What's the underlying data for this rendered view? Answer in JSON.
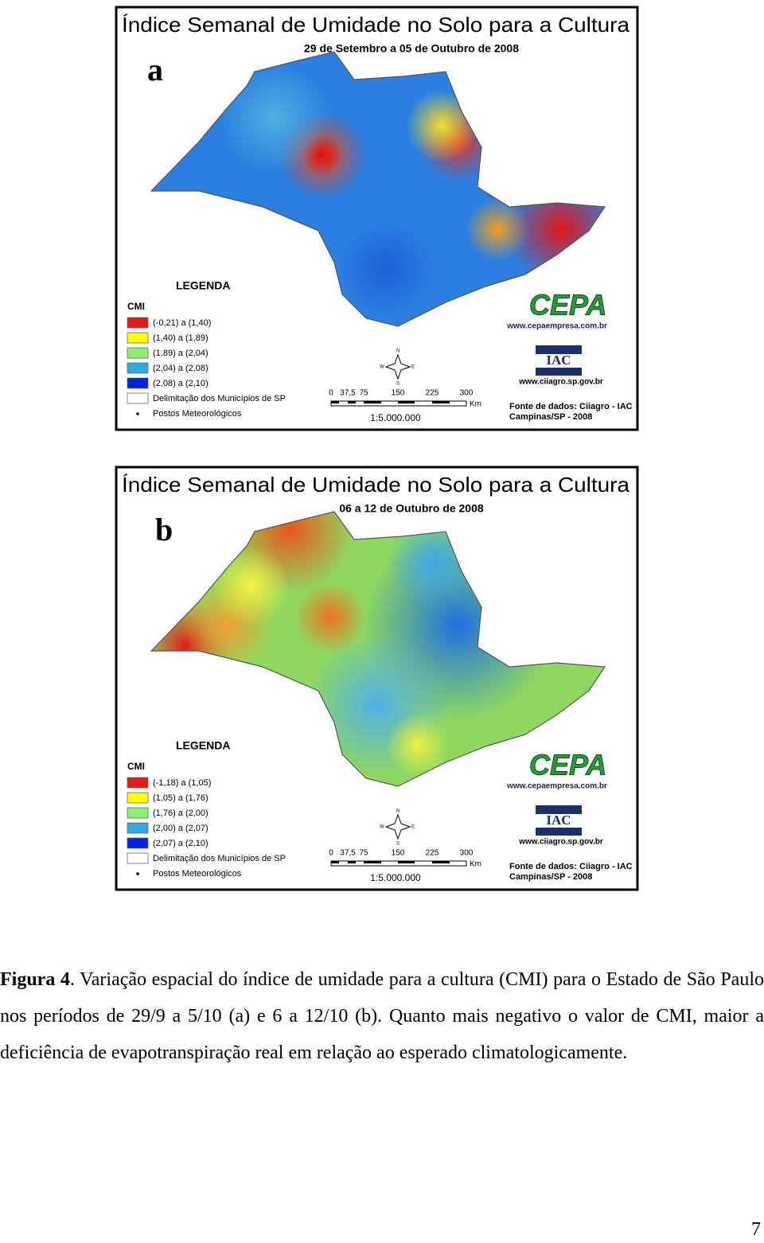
{
  "maps": [
    {
      "title": "Índice Semanal de Umidade no Solo para a Cultura",
      "subtitle": "29 de Setembro a 05 de Outubro de 2008",
      "panel": "a",
      "legend": {
        "title": "LEGENDA",
        "variable": "CMI",
        "entries": [
          "(-0,21) a (1,40)",
          "(1,40) a (1,89)",
          "(1,89) a (2,04)",
          "(2,04) a (2,08)",
          "(2,08) a (2,10)",
          "Delimitação dos Municípios de SP",
          "Postos Meteorológicos"
        ]
      },
      "compass": [
        "N",
        "S",
        "W",
        "E"
      ],
      "scale": {
        "ticks": [
          "0",
          "37,5",
          "75",
          "150",
          "225",
          "300"
        ],
        "unit": "Km",
        "ratio": "1:5.000.000"
      },
      "logos": {
        "cepa": "CEPA",
        "cepa_url": "www.cepaempresa.com.br",
        "iac": "IAC",
        "iac_url": "www.ciiagro.sp.gov.br"
      },
      "source": [
        "Fonte de dados: Ciiagro - IAC",
        "Campinas/SP - 2008"
      ]
    },
    {
      "title": "Índice Semanal de Umidade no Solo para a Cultura",
      "subtitle": "06 a 12 de Outubro de 2008",
      "panel": "b",
      "legend": {
        "title": "LEGENDA",
        "variable": "CMI",
        "entries": [
          "(-1,18) a (1,05)",
          "(1,05) a (1,76)",
          "(1,76) a (2,00)",
          "(2,00) a (2,07)",
          "(2,07) a (2,10)",
          "Delimitação dos Municípios de SP",
          "Postos Meteorológicos"
        ]
      },
      "compass": [
        "N",
        "S",
        "W",
        "E"
      ],
      "scale": {
        "ticks": [
          "0",
          "37,5",
          "75",
          "150",
          "225",
          "300"
        ],
        "unit": "Km",
        "ratio": "1:5.000.000"
      },
      "logos": {
        "cepa": "CEPA",
        "cepa_url": "www.cepaempresa.com.br",
        "iac": "IAC",
        "iac_url": "www.ciiagro.sp.gov.br"
      },
      "source": [
        "Fonte de dados: Ciiagro - IAC",
        "Campinas/SP - 2008"
      ]
    }
  ],
  "caption": {
    "label": "Figura 4",
    "text": ". Variação espacial do índice de umidade para a cultura (CMI) para o Estado de São Paulo nos períodos de 29/9 a 5/10 (a) e 6 a 12/10 (b). Quanto mais negativo o valor de CMI, maior a deficiência de evapotranspiração real em relação ao esperado climatologicamente."
  },
  "page_number": "7"
}
